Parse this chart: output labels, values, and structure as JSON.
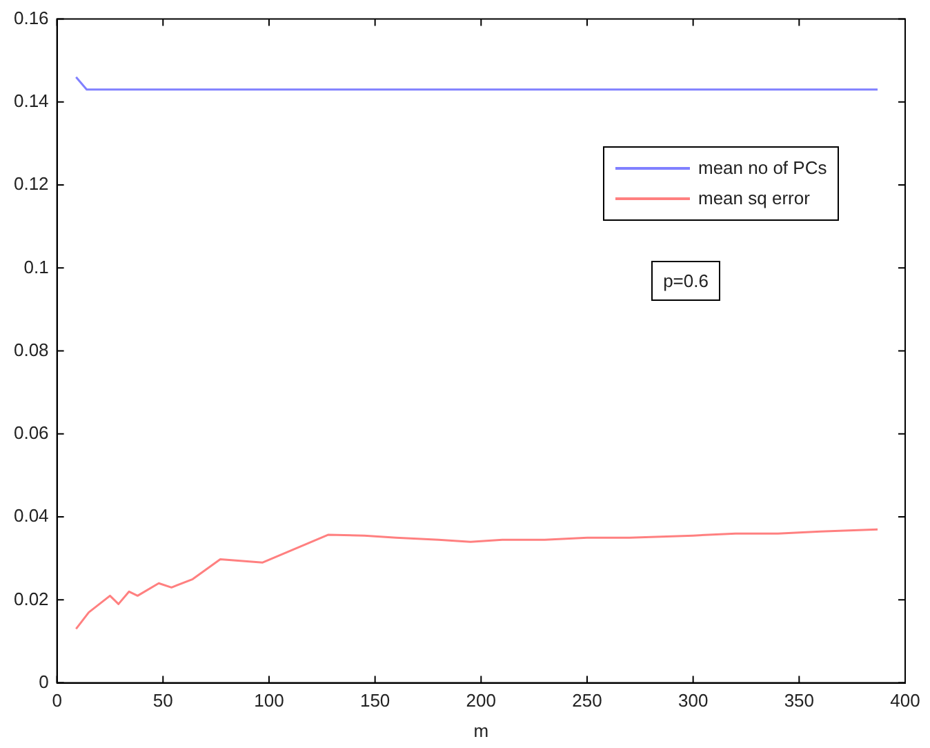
{
  "chart_data": {
    "type": "line",
    "xlabel": "m",
    "xlim": [
      0,
      400
    ],
    "xticks": [
      0,
      50,
      100,
      150,
      200,
      250,
      300,
      350,
      400
    ],
    "ylim": [
      0,
      0.16
    ],
    "yticks": [
      0,
      0.02,
      0.04,
      0.06,
      0.08,
      0.1,
      0.12,
      0.14,
      0.16
    ],
    "grid": false,
    "legend": "top right",
    "marker": "none",
    "line_style": "solid",
    "annotations": [
      "p=0.6"
    ],
    "series": [
      {
        "name": "mean no of PCs",
        "color": "#8080ff",
        "x": [
          9,
          14,
          387
        ],
        "values": [
          0.146,
          0.143,
          0.143
        ]
      },
      {
        "name": "mean sq error",
        "color": "#ff8080",
        "x": [
          9,
          15,
          25,
          29,
          34,
          38,
          48,
          54,
          64,
          77,
          97,
          128,
          145,
          160,
          180,
          195,
          210,
          230,
          250,
          270,
          300,
          320,
          340,
          360,
          387
        ],
        "values": [
          0.013,
          0.017,
          0.021,
          0.019,
          0.022,
          0.021,
          0.024,
          0.023,
          0.025,
          0.0298,
          0.029,
          0.0357,
          0.0355,
          0.035,
          0.0345,
          0.034,
          0.0345,
          0.0345,
          0.035,
          0.035,
          0.0355,
          0.036,
          0.036,
          0.0365,
          0.037
        ]
      }
    ]
  }
}
